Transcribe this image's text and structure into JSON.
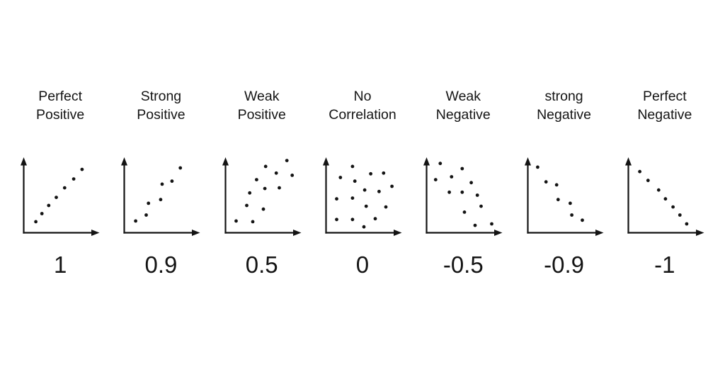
{
  "page": {
    "background": "#ffffff",
    "ink": "#141414"
  },
  "chart_data": [
    {
      "type": "scatter",
      "label": "Perfect Positive",
      "label_lines": [
        "Perfect",
        "Positive"
      ],
      "coefficient": "1",
      "xlim": [
        0,
        1
      ],
      "ylim": [
        0,
        1
      ],
      "grid": false,
      "axes_style": "arrow-axes-unlabeled",
      "points": [
        [
          0.16,
          0.15
        ],
        [
          0.24,
          0.26
        ],
        [
          0.33,
          0.37
        ],
        [
          0.43,
          0.48
        ],
        [
          0.54,
          0.61
        ],
        [
          0.66,
          0.73
        ],
        [
          0.77,
          0.86
        ]
      ]
    },
    {
      "type": "scatter",
      "label": "Strong Positive",
      "label_lines": [
        "Strong",
        "Positive"
      ],
      "coefficient": "0.9",
      "xlim": [
        0,
        1
      ],
      "ylim": [
        0,
        1
      ],
      "grid": false,
      "axes_style": "arrow-axes-unlabeled",
      "points": [
        [
          0.15,
          0.16
        ],
        [
          0.29,
          0.24
        ],
        [
          0.32,
          0.4
        ],
        [
          0.48,
          0.45
        ],
        [
          0.5,
          0.66
        ],
        [
          0.63,
          0.7
        ],
        [
          0.74,
          0.88
        ]
      ]
    },
    {
      "type": "scatter",
      "label": "Weak Positive",
      "label_lines": [
        "Weak",
        "Positive"
      ],
      "coefficient": "0.5",
      "xlim": [
        0,
        1
      ],
      "ylim": [
        0,
        1
      ],
      "grid": false,
      "axes_style": "arrow-axes-unlabeled",
      "points": [
        [
          0.14,
          0.16
        ],
        [
          0.36,
          0.15
        ],
        [
          0.28,
          0.37
        ],
        [
          0.5,
          0.32
        ],
        [
          0.32,
          0.54
        ],
        [
          0.52,
          0.6
        ],
        [
          0.71,
          0.61
        ],
        [
          0.41,
          0.72
        ],
        [
          0.67,
          0.81
        ],
        [
          0.53,
          0.9
        ],
        [
          0.88,
          0.78
        ],
        [
          0.81,
          0.98
        ]
      ]
    },
    {
      "type": "scatter",
      "label": "No Correlation",
      "label_lines": [
        "No",
        "Correlation"
      ],
      "coefficient": "0",
      "xlim": [
        0,
        1
      ],
      "ylim": [
        0,
        1
      ],
      "grid": false,
      "axes_style": "arrow-axes-unlabeled",
      "points": [
        [
          0.35,
          0.9
        ],
        [
          0.59,
          0.8
        ],
        [
          0.76,
          0.81
        ],
        [
          0.19,
          0.75
        ],
        [
          0.38,
          0.7
        ],
        [
          0.51,
          0.58
        ],
        [
          0.7,
          0.56
        ],
        [
          0.87,
          0.63
        ],
        [
          0.14,
          0.46
        ],
        [
          0.35,
          0.47
        ],
        [
          0.53,
          0.36
        ],
        [
          0.79,
          0.35
        ],
        [
          0.14,
          0.18
        ],
        [
          0.35,
          0.18
        ],
        [
          0.65,
          0.19
        ],
        [
          0.5,
          0.08
        ]
      ]
    },
    {
      "type": "scatter",
      "label": "Weak Negative",
      "label_lines": [
        "Weak",
        "Negative"
      ],
      "coefficient": "-0.5",
      "xlim": [
        0,
        1
      ],
      "ylim": [
        0,
        1
      ],
      "grid": false,
      "axes_style": "arrow-axes-unlabeled",
      "points": [
        [
          0.18,
          0.94
        ],
        [
          0.47,
          0.87
        ],
        [
          0.12,
          0.72
        ],
        [
          0.33,
          0.76
        ],
        [
          0.59,
          0.68
        ],
        [
          0.3,
          0.55
        ],
        [
          0.47,
          0.55
        ],
        [
          0.67,
          0.51
        ],
        [
          0.72,
          0.36
        ],
        [
          0.5,
          0.28
        ],
        [
          0.64,
          0.1
        ],
        [
          0.86,
          0.12
        ]
      ]
    },
    {
      "type": "scatter",
      "label": "strong Negative",
      "label_lines": [
        "strong",
        "Negative"
      ],
      "coefficient": "-0.9",
      "xlim": [
        0,
        1
      ],
      "ylim": [
        0,
        1
      ],
      "grid": false,
      "axes_style": "arrow-axes-unlabeled",
      "points": [
        [
          0.13,
          0.89
        ],
        [
          0.24,
          0.69
        ],
        [
          0.38,
          0.65
        ],
        [
          0.4,
          0.45
        ],
        [
          0.56,
          0.4
        ],
        [
          0.58,
          0.24
        ],
        [
          0.72,
          0.17
        ]
      ]
    },
    {
      "type": "scatter",
      "label": "Perfect Negative",
      "label_lines": [
        "Perfect",
        "Negative"
      ],
      "coefficient": "-1",
      "xlim": [
        0,
        1
      ],
      "ylim": [
        0,
        1
      ],
      "grid": false,
      "axes_style": "arrow-axes-unlabeled",
      "points": [
        [
          0.15,
          0.83
        ],
        [
          0.26,
          0.71
        ],
        [
          0.4,
          0.58
        ],
        [
          0.49,
          0.46
        ],
        [
          0.59,
          0.35
        ],
        [
          0.68,
          0.24
        ],
        [
          0.77,
          0.12
        ]
      ]
    }
  ]
}
